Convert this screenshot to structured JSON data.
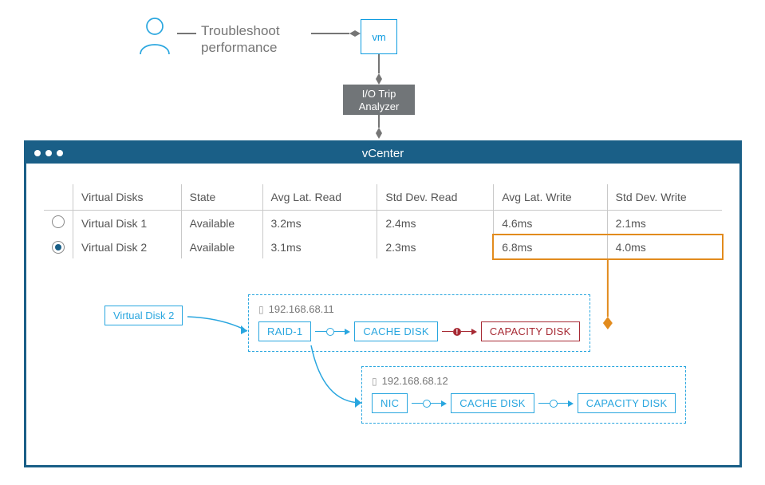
{
  "colors": {
    "accent_blue": "#0d9be0",
    "panel_blue": "#1a5f87",
    "orange": "#e28b1d",
    "gray_box": "#717578",
    "text_gray": "#757575",
    "error_red": "#a72a34",
    "border_gray": "#c9c9c9",
    "bg": "#ffffff"
  },
  "top": {
    "troubleshoot_text": "Troubleshoot\nperformance",
    "vm_label": "vm",
    "analyzer_label": "I/O Trip\nAnalyzer"
  },
  "vcenter": {
    "title": "vCenter",
    "table": {
      "columns": [
        "Virtual Disks",
        "State",
        "Avg Lat. Read",
        "Std Dev. Read",
        "Avg Lat. Write",
        "Std Dev. Write"
      ],
      "rows": [
        {
          "selected": false,
          "cells": [
            "Virtual Disk 1",
            "Available",
            "3.2ms",
            "2.4ms",
            "4.6ms",
            "2.1ms"
          ]
        },
        {
          "selected": true,
          "cells": [
            "Virtual Disk 2",
            "Available",
            "3.1ms",
            "2.3ms",
            "6.8ms",
            "4.0ms"
          ]
        }
      ],
      "highlight": {
        "row": 1,
        "col_start": 4,
        "col_end": 5
      }
    },
    "topology": {
      "selected_disk_label": "Virtual Disk 2",
      "hosts": [
        {
          "ip": "192.168.68.11",
          "chain": [
            {
              "text": "RAID-1",
              "style": "blue",
              "connector": "blue"
            },
            {
              "text": "CACHE DISK",
              "style": "blue",
              "connector": "red"
            },
            {
              "text": "CAPACITY DISK",
              "style": "red"
            }
          ]
        },
        {
          "ip": "192.168.68.12",
          "chain": [
            {
              "text": "NIC",
              "style": "blue",
              "connector": "blue"
            },
            {
              "text": "CACHE DISK",
              "style": "blue",
              "connector": "blue"
            },
            {
              "text": "CAPACITY DISK",
              "style": "blue"
            }
          ]
        }
      ]
    }
  },
  "chart_style": {
    "type": "infographic",
    "font_family": "sans-serif",
    "title_fontsize": 15,
    "label_fontsize": 14,
    "chip_fontsize": 13,
    "line_width": 1.5,
    "arrow_size": 7,
    "background_color": "#ffffff"
  }
}
